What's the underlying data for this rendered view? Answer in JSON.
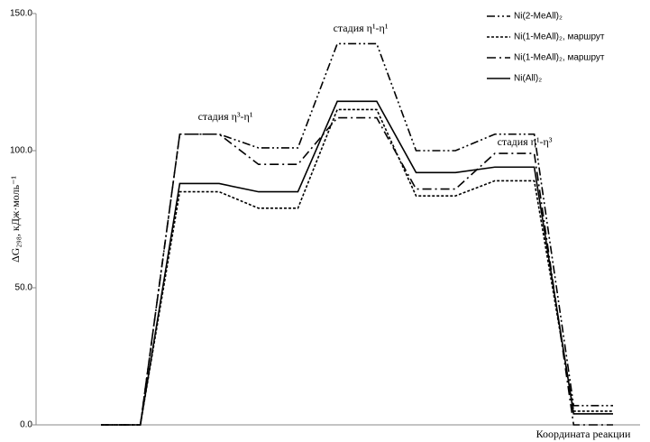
{
  "chart_data": {
    "type": "line",
    "y_label": "ΔG₂₉₈, кДж·моль⁻¹",
    "x_label": "Координата реакции",
    "categories": [
      null,
      null,
      null,
      null,
      null,
      null,
      null,
      null,
      null,
      null,
      null,
      null,
      null,
      null
    ],
    "series": [
      {
        "name": "Ni(2-MeAll)₂",
        "color": "#000000",
        "dash": "9 3 2 3 2 3",
        "values": [
          0,
          0,
          106,
          106,
          101,
          101,
          139,
          139,
          100,
          100,
          106,
          106,
          7,
          7
        ]
      },
      {
        "name": "Ni(1-MeAll)₂, маршрут",
        "color": "#000000",
        "dash": "3 2",
        "values": [
          0,
          0,
          85,
          85,
          79,
          79,
          115,
          115,
          83.5,
          83.5,
          89,
          89,
          5,
          5
        ]
      },
      {
        "name": "Ni(1-MeAll)₂, маршрут",
        "color": "#000000",
        "dash": "10 4 2 4",
        "values": [
          0,
          0,
          106,
          106,
          95,
          95,
          112,
          112,
          86,
          86,
          99,
          99,
          0,
          0
        ]
      },
      {
        "name": "Ni(All)₂",
        "color": "#000000",
        "dash": "none",
        "values": [
          0,
          0,
          88,
          88,
          85,
          85,
          118,
          118,
          92,
          92,
          94,
          94,
          4,
          4
        ]
      }
    ],
    "annotations": [
      "стадия η³-η¹",
      "стадия η¹-η¹",
      "стадия η¹-η³"
    ],
    "ylim": [
      0,
      150
    ],
    "yticks": [
      {
        "value": 0,
        "label": "0.0"
      },
      {
        "value": 50,
        "label": "50.0"
      },
      {
        "value": 100,
        "label": "100.0"
      },
      {
        "value": 150,
        "label": "150.0"
      }
    ],
    "legend": "top-right"
  }
}
